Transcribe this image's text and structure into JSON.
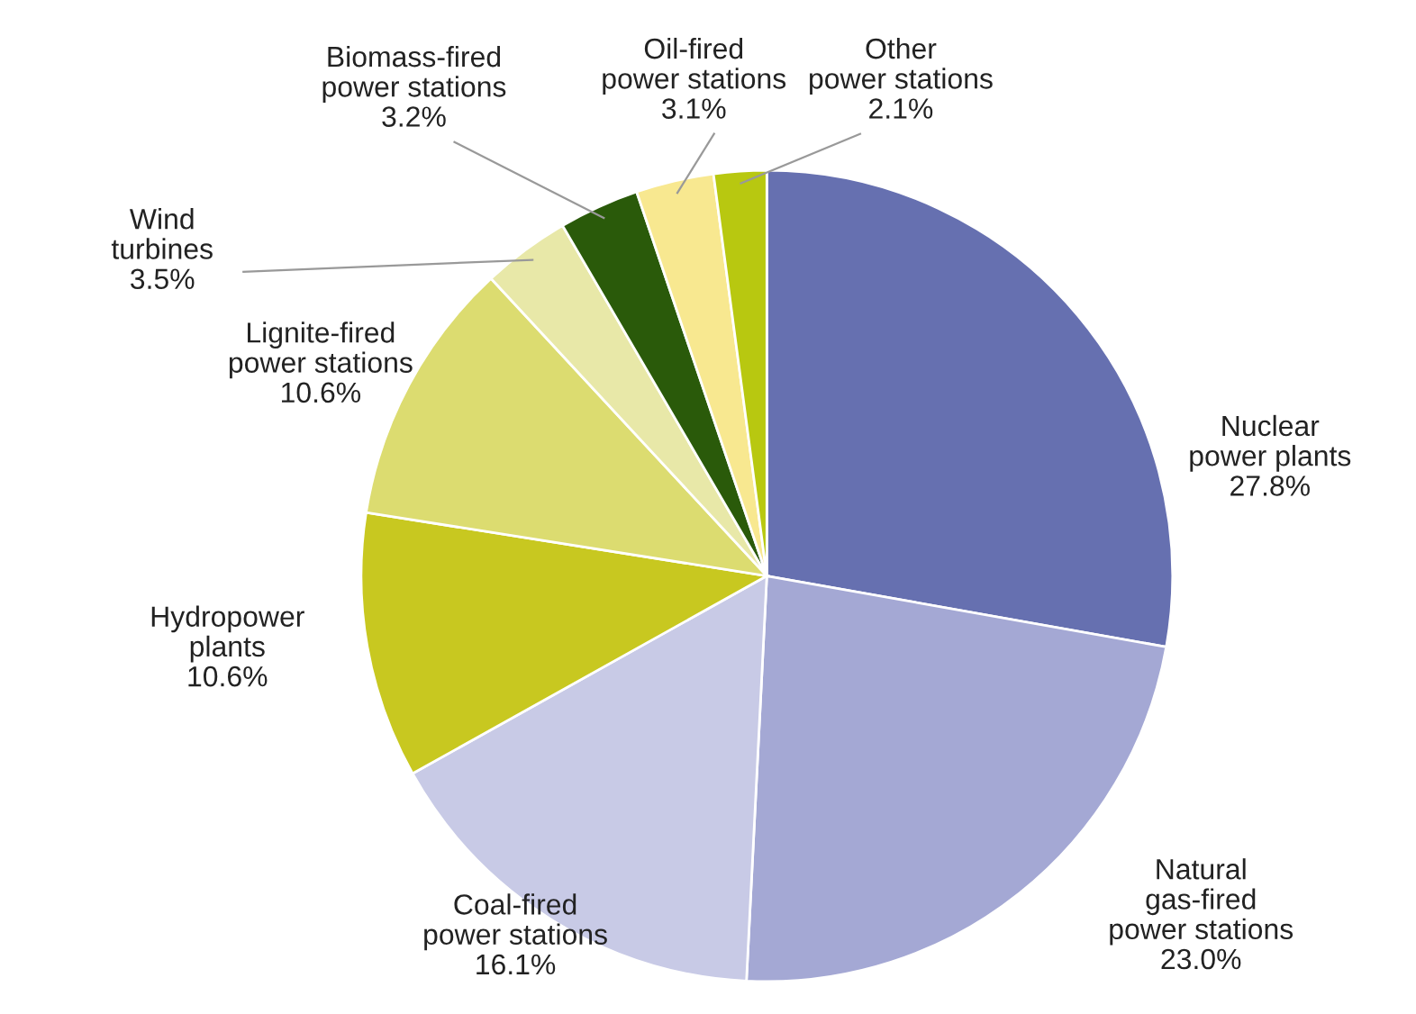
{
  "chart_data": {
    "type": "pie",
    "categories": [
      "Nuclear\npower plants",
      "Natural\ngas-fired\npower stations",
      "Coal-fired\npower stations",
      "Hydropower\nplants",
      "Lignite-fired\npower stations",
      "Wind\nturbines",
      "Biomass-fired\npower stations",
      "Oil-fired\npower stations",
      "Other\npower stations"
    ],
    "values": [
      27.8,
      23.0,
      16.1,
      10.6,
      10.6,
      3.5,
      3.2,
      3.1,
      2.1
    ],
    "value_labels": [
      "27.8%",
      "23.0%",
      "16.1%",
      "10.6%",
      "10.6%",
      "3.5%",
      "3.2%",
      "3.1%",
      "2.1%"
    ],
    "colors": [
      "#6670b0",
      "#a4a8d4",
      "#c8cae6",
      "#c8c820",
      "#dcdc70",
      "#e8e8a8",
      "#2a5a0a",
      "#f8e890",
      "#b8c810"
    ]
  }
}
